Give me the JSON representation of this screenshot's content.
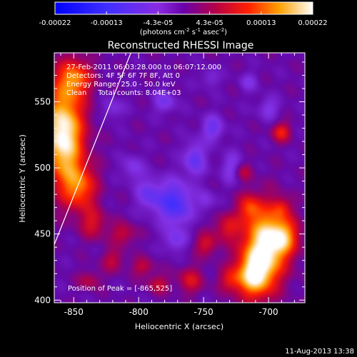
{
  "chart_data": {
    "type": "heatmap",
    "title": "Reconstructed RHESSI Image",
    "xlabel": "Heliocentric X (arcsec)",
    "ylabel": "Heliocentric Y (arcsec)",
    "xlim": [
      -865,
      -672
    ],
    "ylim": [
      398,
      587
    ],
    "x_ticks": [
      -850,
      -800,
      -750,
      -700
    ],
    "y_ticks": [
      400,
      450,
      500,
      550
    ],
    "colorbar": {
      "range": [
        -0.00022,
        0.00022
      ],
      "ticks": [
        "-0.00022",
        "-0.00013",
        "-4.3e-05",
        "4.3e-05",
        "0.00013",
        "0.00022"
      ],
      "label": "(photons cm",
      "label_exp1": "-2",
      "label_mid": " s",
      "label_exp2": "-1",
      "label_mid2": " asec",
      "label_exp3": "-2",
      "label_end": ")"
    },
    "info": [
      "27-Feb-2011 06:03:28.000 to 06:07:12.000",
      "Detectors: 4F 5F 6F 7F 8F, Att 0",
      "Energy Range: 25.0 - 50.0 keV",
      "Clean     Total counts: 8.04E+03"
    ],
    "peak_label": "Position of Peak = [-865,525]",
    "peak": [
      -865,
      525
    ],
    "limb_line": [
      [
        -865,
        442
      ],
      [
        -806,
        587
      ]
    ],
    "sources": [
      {
        "x": -858,
        "y": 525,
        "sx": 11,
        "sy": 26,
        "a": 1.05
      },
      {
        "x": -849,
        "y": 568,
        "sx": 9,
        "sy": 10,
        "a": 0.55
      },
      {
        "x": -845,
        "y": 485,
        "sx": 9,
        "sy": 12,
        "a": 0.55
      },
      {
        "x": -835,
        "y": 458,
        "sx": 7,
        "sy": 8,
        "a": 0.35
      },
      {
        "x": -703,
        "y": 442,
        "sx": 12,
        "sy": 20,
        "a": 0.95
      },
      {
        "x": -712,
        "y": 418,
        "sx": 10,
        "sy": 12,
        "a": 0.75
      },
      {
        "x": -688,
        "y": 448,
        "sx": 8,
        "sy": 10,
        "a": 0.55
      },
      {
        "x": -715,
        "y": 470,
        "sx": 6,
        "sy": 7,
        "a": 0.4
      },
      {
        "x": -732,
        "y": 455,
        "sx": 7,
        "sy": 7,
        "a": 0.35
      },
      {
        "x": -748,
        "y": 442,
        "sx": 6,
        "sy": 6,
        "a": 0.35
      },
      {
        "x": -760,
        "y": 415,
        "sx": 7,
        "sy": 7,
        "a": 0.35
      },
      {
        "x": -730,
        "y": 415,
        "sx": 6,
        "sy": 6,
        "a": 0.3
      },
      {
        "x": -690,
        "y": 527,
        "sx": 5,
        "sy": 5,
        "a": 0.45
      },
      {
        "x": -720,
        "y": 497,
        "sx": 5,
        "sy": 5,
        "a": 0.3
      },
      {
        "x": -690,
        "y": 470,
        "sx": 5,
        "sy": 5,
        "a": 0.3
      },
      {
        "x": -812,
        "y": 450,
        "sx": 7,
        "sy": 6,
        "a": 0.3
      },
      {
        "x": -820,
        "y": 430,
        "sx": 6,
        "sy": 6,
        "a": 0.28
      },
      {
        "x": -797,
        "y": 425,
        "sx": 6,
        "sy": 5,
        "a": 0.28
      },
      {
        "x": -785,
        "y": 412,
        "sx": 6,
        "sy": 5,
        "a": 0.3
      },
      {
        "x": -838,
        "y": 415,
        "sx": 6,
        "sy": 5,
        "a": 0.25
      },
      {
        "x": -772,
        "y": 473,
        "sx": 9,
        "sy": 12,
        "a": -0.55
      },
      {
        "x": -757,
        "y": 507,
        "sx": 6,
        "sy": 9,
        "a": -0.4
      },
      {
        "x": -792,
        "y": 480,
        "sx": 7,
        "sy": 9,
        "a": -0.35
      },
      {
        "x": -743,
        "y": 530,
        "sx": 6,
        "sy": 7,
        "a": -0.35
      },
      {
        "x": -728,
        "y": 500,
        "sx": 6,
        "sy": 8,
        "a": -0.3
      },
      {
        "x": -780,
        "y": 550,
        "sx": 6,
        "sy": 6,
        "a": -0.3
      },
      {
        "x": -805,
        "y": 500,
        "sx": 6,
        "sy": 7,
        "a": -0.25
      },
      {
        "x": -772,
        "y": 445,
        "sx": 6,
        "sy": 6,
        "a": -0.28
      },
      {
        "x": -748,
        "y": 475,
        "sx": 5,
        "sy": 6,
        "a": -0.22
      },
      {
        "x": -700,
        "y": 545,
        "sx": 6,
        "sy": 6,
        "a": -0.25
      },
      {
        "x": -715,
        "y": 565,
        "sx": 5,
        "sy": 5,
        "a": -0.22
      },
      {
        "x": -820,
        "y": 545,
        "sx": 6,
        "sy": 6,
        "a": -0.22
      },
      {
        "x": -745,
        "y": 568,
        "sx": 5,
        "sy": 5,
        "a": -0.2
      }
    ],
    "footer_date": "11-Aug-2013 13:38"
  }
}
